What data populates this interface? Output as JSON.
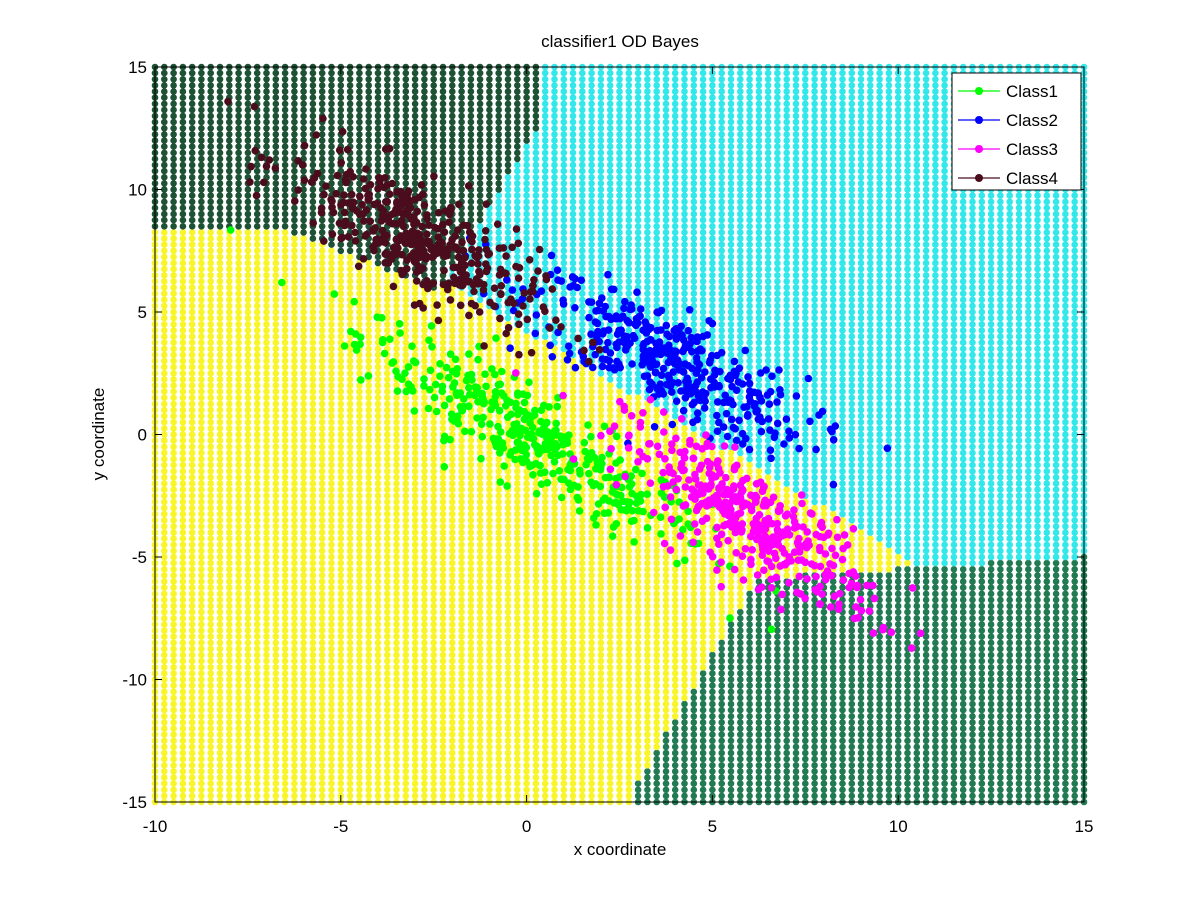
{
  "chart_data": {
    "type": "scatter",
    "title": "classifier1 OD Bayes",
    "xlabel": "x coordinate",
    "ylabel": "y coordinate",
    "xlim": [
      -10,
      15
    ],
    "ylim": [
      -15,
      15
    ],
    "xticks": [
      -10,
      -5,
      0,
      5,
      10,
      15
    ],
    "yticks": [
      -15,
      -10,
      -5,
      0,
      5,
      10,
      15
    ],
    "grid": false,
    "legend_position": "top-right",
    "background_grid": {
      "description_source": "decision-region dots",
      "step": 0.25,
      "regions": [
        {
          "id": "dark_green_top_left",
          "color": "#1d5234"
        },
        {
          "id": "cyan",
          "color": "#33e8ea"
        },
        {
          "id": "yellow",
          "color": "#f8f52b"
        },
        {
          "id": "dark_green_bottom_right",
          "color": "#217a52"
        }
      ]
    },
    "series": [
      {
        "name": "Class1",
        "color": "#00ff00",
        "center": [
          0.2,
          -0.2
        ],
        "cov": [
          [
            5.5,
            -5.0
          ],
          [
            -5.0,
            5.5
          ]
        ],
        "n": 400
      },
      {
        "name": "Class2",
        "color": "#0000ff",
        "center": [
          3.8,
          3.0
        ],
        "cov": [
          [
            3.5,
            -2.6
          ],
          [
            -2.6,
            3.0
          ]
        ],
        "n": 400
      },
      {
        "name": "Class3",
        "color": "#ff00ff",
        "center": [
          6.0,
          -3.5
        ],
        "cov": [
          [
            2.8,
            -2.6
          ],
          [
            -2.6,
            3.6
          ]
        ],
        "n": 400
      },
      {
        "name": "Class4",
        "color": "#4b0d1e",
        "center": [
          -3.0,
          8.0
        ],
        "cov": [
          [
            2.8,
            -2.3
          ],
          [
            -2.3,
            3.2
          ]
        ],
        "n": 400
      }
    ]
  }
}
